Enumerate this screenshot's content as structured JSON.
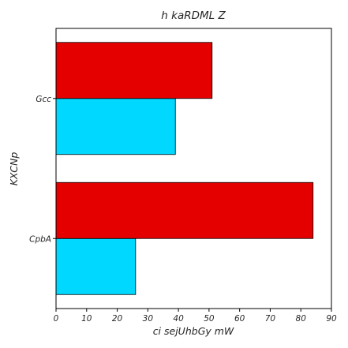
{
  "chart_data": {
    "type": "bar",
    "orientation": "horizontal",
    "title": "h kaRDML Z",
    "xlabel": "ci sejUhbGy mW",
    "ylabel": "KXCNp",
    "categories": [
      "CpbA",
      "Gcc"
    ],
    "series": [
      {
        "values": [
          26,
          39
        ],
        "color": "#00d8ff"
      },
      {
        "values": [
          84,
          51
        ],
        "color": "#e50000"
      }
    ],
    "xlim": [
      0,
      90
    ],
    "xticks": [
      0,
      10,
      20,
      30,
      40,
      50,
      60,
      70,
      80,
      90
    ],
    "grid": false,
    "legend": "none"
  }
}
